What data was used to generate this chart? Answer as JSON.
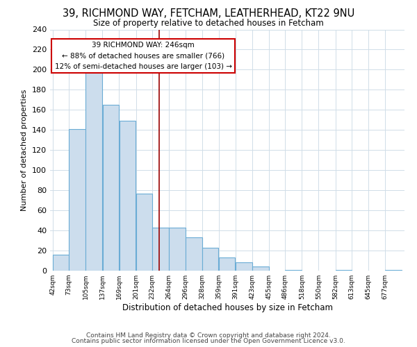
{
  "title": "39, RICHMOND WAY, FETCHAM, LEATHERHEAD, KT22 9NU",
  "subtitle": "Size of property relative to detached houses in Fetcham",
  "xlabel": "Distribution of detached houses by size in Fetcham",
  "ylabel": "Number of detached properties",
  "bar_edges": [
    42,
    73,
    105,
    137,
    169,
    201,
    232,
    264,
    296,
    328,
    359,
    391,
    423,
    455,
    486,
    518,
    550,
    582,
    613,
    645,
    677,
    709
  ],
  "bar_heights": [
    16,
    141,
    200,
    165,
    149,
    77,
    43,
    43,
    33,
    23,
    13,
    8,
    4,
    0,
    1,
    0,
    0,
    1,
    0,
    0,
    1
  ],
  "bar_color": "#ccdded",
  "bar_edgecolor": "#6aacd5",
  "vline_x": 246,
  "vline_color": "#990000",
  "annotation_text": "39 RICHMOND WAY: 246sqm\n← 88% of detached houses are smaller (766)\n12% of semi-detached houses are larger (103) →",
  "annotation_box_edgecolor": "#cc0000",
  "annotation_box_facecolor": "#ffffff",
  "ylim": [
    0,
    240
  ],
  "yticks": [
    0,
    20,
    40,
    60,
    80,
    100,
    120,
    140,
    160,
    180,
    200,
    220,
    240
  ],
  "tick_labels": [
    "42sqm",
    "73sqm",
    "105sqm",
    "137sqm",
    "169sqm",
    "201sqm",
    "232sqm",
    "264sqm",
    "296sqm",
    "328sqm",
    "359sqm",
    "391sqm",
    "423sqm",
    "455sqm",
    "486sqm",
    "518sqm",
    "550sqm",
    "582sqm",
    "613sqm",
    "645sqm",
    "677sqm"
  ],
  "footer_line1": "Contains HM Land Registry data © Crown copyright and database right 2024.",
  "footer_line2": "Contains public sector information licensed under the Open Government Licence v3.0.",
  "background_color": "#ffffff",
  "grid_color": "#d0dde8"
}
